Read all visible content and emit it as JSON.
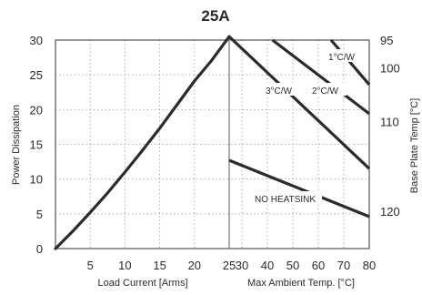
{
  "chart_data": {
    "type": "line",
    "title": "25A",
    "ylabel": "Power Dissipation",
    "ylabel_right": "Base Plate Temp [°C]",
    "grid": true,
    "ylim": [
      0,
      30
    ],
    "yticks": [
      "0",
      "5",
      "10",
      "15",
      "20",
      "25",
      "30"
    ],
    "right_ticks": [
      {
        "label": "95",
        "at_power": 30
      },
      {
        "label": "100",
        "at_power": 26
      },
      {
        "label": "110",
        "at_power": 18.3
      },
      {
        "label": "120",
        "at_power": 5.4
      }
    ],
    "panels": [
      {
        "xlabel": "Load Current [Arms]",
        "xlim": [
          0,
          25
        ],
        "xticks": [
          "5",
          "10",
          "15",
          "20",
          "25"
        ],
        "series": [
          {
            "x": [
              0,
              2.5,
              5,
              7.5,
              10,
              12.5,
              15,
              17.5,
              20,
              22.5,
              25
            ],
            "values": [
              0,
              2.5,
              5.2,
              8,
              11,
              14.1,
              17.3,
              20.7,
              24.1,
              27.1,
              30.5
            ]
          }
        ]
      },
      {
        "xlabel": "Max Ambient Temp. [°C]",
        "xlim": [
          25,
          80
        ],
        "xticks": [
          "25",
          "30",
          "40",
          "50",
          "60",
          "70",
          "80"
        ],
        "series": [
          {
            "name": "1°C/W",
            "x": [
              65,
              80
            ],
            "values": [
              30,
              23.6
            ]
          },
          {
            "name": "2°C/W",
            "x": [
              42,
              80
            ],
            "values": [
              30,
              19.4
            ]
          },
          {
            "name": "3°C/W",
            "x": [
              25,
              80
            ],
            "values": [
              30.5,
              11.5
            ]
          },
          {
            "name": "NO HEATSINK",
            "x": [
              25,
              80
            ],
            "values": [
              12.7,
              4.6
            ]
          }
        ]
      }
    ],
    "annotations": [
      "1°C/W",
      "2°C/W",
      "3°C/W",
      "NO HEATSINK"
    ]
  }
}
